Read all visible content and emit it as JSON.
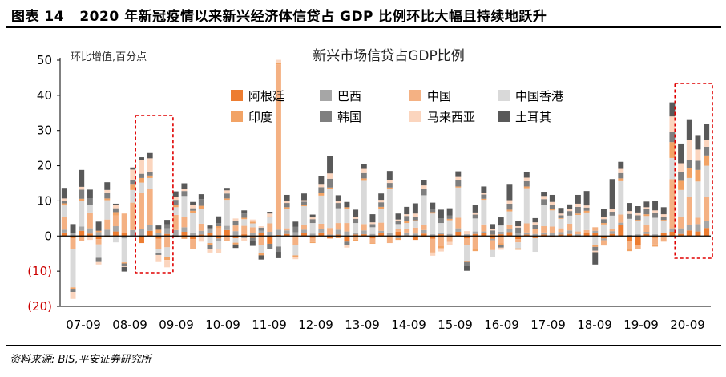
{
  "figure": {
    "label": "图表 14",
    "title": "2020 年新冠疫情以来新兴经济体信贷占 GDP 比例环比大幅且持续地跃升",
    "source": "资料来源: BIS,平安证券研究所"
  },
  "chart_data": {
    "type": "bar",
    "stacked": true,
    "title": "新兴市场信贷占GDP比例",
    "ylabel": "环比增值,百分点",
    "ylim": [
      -20,
      50
    ],
    "yticks": [
      50,
      40,
      30,
      20,
      10,
      0,
      -10,
      -20
    ],
    "ytick_labels": [
      "50",
      "40",
      "30",
      "20",
      "10",
      "0",
      "(10)",
      "(20)"
    ],
    "negative_tick_color": "#cc0000",
    "xtick_labels": [
      "07-09",
      "08-09",
      "09-09",
      "10-09",
      "11-09",
      "12-09",
      "13-09",
      "14-09",
      "15-09",
      "16-09",
      "17-09",
      "18-09",
      "19-09",
      "20-09"
    ],
    "legend_position": "top-center",
    "grid": false,
    "series": [
      {
        "name": "阿根廷",
        "color": "#ed7d31",
        "values": [
          1,
          -0.6,
          1.5,
          0.7,
          -0.9,
          -0.4,
          1.3,
          0.9,
          0,
          -2,
          1.5,
          -0.8,
          0.6,
          -0.4,
          1.2,
          -0.9,
          0.4,
          0.9,
          -0.7,
          1.7,
          -0.6,
          0.5,
          -0.5,
          0.9,
          -2.2,
          0.3,
          0.6,
          -0.4,
          0.9,
          -0.5,
          1,
          -0.7,
          0.4,
          -1.6,
          0.4,
          0.5,
          -0.7,
          0.8,
          -0.3,
          1.2,
          0.2,
          -1.1,
          0.7,
          -0.8,
          0.5,
          -0.3,
          1.2,
          -0.7,
          0.6,
          0.8,
          -0.8,
          0.5,
          1.1,
          -0.9,
          0.4,
          -0.6,
          0.4,
          -0.4,
          0.4,
          0.6,
          -0.4,
          0.8,
          0.9,
          -0.7,
          0.6,
          3.2,
          -1.4,
          -2.6,
          0.6,
          -0.5,
          0.8,
          1.2,
          0.6,
          1.6,
          1.3,
          2.3
        ]
      },
      {
        "name": "巴西",
        "color": "#a6a6a6",
        "values": [
          0.8,
          0.9,
          1.2,
          1.5,
          1.1,
          1.8,
          1.5,
          -0.7,
          1.7,
          2.1,
          1.7,
          0.9,
          1.6,
          1.7,
          1.3,
          1,
          1.1,
          1.3,
          -0.7,
          1.2,
          1.4,
          -0.6,
          0.9,
          0.6,
          1.2,
          1.5,
          1,
          1.1,
          0.9,
          0.7,
          0.9,
          0.4,
          1.4,
          1.3,
          0.6,
          1.1,
          0.6,
          0.7,
          1,
          -0.6,
          0.8,
          0.7,
          1,
          0.5,
          0.4,
          0.6,
          1,
          0.5,
          0.7,
          0.5,
          -0.4,
          0.7,
          0.9,
          0.8,
          0.6,
          0.6,
          0.6,
          0.8,
          0.7,
          1,
          0.5,
          -0.4,
          0.6,
          -0.5,
          0.8,
          0.6,
          0.3,
          0.5,
          0.6,
          0.5,
          -0.4,
          1,
          1.6,
          1.6,
          2.1,
          1.9
        ]
      },
      {
        "name": "中国",
        "color": "#f4b183",
        "values": [
          3.6,
          -3,
          -1.4,
          4.5,
          -1.5,
          2.9,
          3,
          5.5,
          7.8,
          10.2,
          10.3,
          -3,
          -3.2,
          4.3,
          2.9,
          -2.8,
          2,
          -0.3,
          2.2,
          -1.4,
          1.6,
          2.4,
          1.6,
          -2.6,
          2.4,
          47,
          0.6,
          -2.1,
          1.3,
          -1.2,
          1.6,
          1.9,
          1.9,
          2.4,
          -1,
          1.8,
          -1.3,
          2.3,
          -1.7,
          0.9,
          1,
          1.7,
          1.5,
          -3.9,
          -2.9,
          -1.4,
          3,
          -1.8,
          -3.7,
          2,
          -2.8,
          -2.1,
          1.3,
          -0.9,
          2.6,
          1.2,
          1.8,
          1.9,
          1.1,
          1.9,
          0.8,
          0.9,
          1,
          -1.5,
          0.6,
          2.3,
          -2.3,
          -1.1,
          2,
          -1.9,
          -1.2,
          14,
          3.3,
          8,
          1.8,
          7
        ]
      },
      {
        "name": "中国香港",
        "color": "#d9d9d9",
        "values": [
          3.3,
          -11,
          7.3,
          2.1,
          -3.8,
          5.5,
          -1.8,
          -6.8,
          3.6,
          2.9,
          3,
          -1.1,
          -2.7,
          2.2,
          6,
          5.5,
          4.2,
          -1.7,
          -2.3,
          7.4,
          -1.3,
          1.9,
          1.1,
          -2.3,
          1.7,
          -3,
          5.4,
          -3,
          5.4,
          3,
          8,
          11,
          4.2,
          3.9,
          2.7,
          12.3,
          1.9,
          4,
          12.4,
          1.3,
          1.7,
          1.8,
          8.4,
          5.9,
          2.8,
          3.9,
          8.6,
          -4.6,
          3.7,
          7,
          -1.9,
          1.8,
          3.7,
          -1.7,
          10,
          -3.9,
          6,
          4.6,
          2.7,
          2.3,
          4.7,
          5,
          -2.6,
          3.3,
          3.8,
          9.5,
          4.6,
          3.8,
          2.5,
          4.7,
          3.4,
          6,
          7.6,
          5.3,
          10.3,
          8.8
        ]
      },
      {
        "name": "印度",
        "color": "#f2a365",
        "values": [
          0.6,
          -0.4,
          0.6,
          -0.2,
          0.4,
          0.5,
          1,
          -0.3,
          1.5,
          1.3,
          0.7,
          0.9,
          -0.9,
          0.6,
          -0.8,
          0.7,
          0.9,
          -0.5,
          0.6,
          0.4,
          -0.5,
          0.4,
          0.5,
          -0.6,
          0.3,
          0.5,
          0.6,
          -0.4,
          0.3,
          -0.3,
          0.8,
          0.5,
          -0.6,
          0.6,
          -0.4,
          0.7,
          -0.2,
          0.5,
          0.4,
          -0.5,
          0.6,
          0.3,
          -0.4,
          0.4,
          -0.6,
          0.4,
          0.3,
          -0.3,
          -0.6,
          0.3,
          0.4,
          -0.5,
          0.5,
          -0.4,
          0.5,
          0.3,
          -0.3,
          0.5,
          0.2,
          -0.3,
          0.4,
          0.5,
          -0.5,
          0.4,
          -0.2,
          0.8,
          -0.6,
          0.3,
          0.5,
          -0.6,
          0.4,
          4.5,
          2.6,
          2.8,
          3.3,
          2.9
        ]
      },
      {
        "name": "韩国",
        "color": "#7f7f7f",
        "values": [
          0.8,
          -0.9,
          2.6,
          1.9,
          -1.2,
          1.7,
          1.1,
          -0.6,
          1.3,
          1.2,
          1.1,
          -0.5,
          1.1,
          1.5,
          1.4,
          0.7,
          1.9,
          -1.2,
          0.9,
          1.4,
          1.3,
          1.2,
          -1,
          0.9,
          -1.4,
          -1.5,
          1.2,
          1.5,
          1,
          1.1,
          1.6,
          2.5,
          1.5,
          -0.9,
          1.2,
          1.5,
          0.9,
          1.3,
          1.3,
          0.8,
          1.4,
          1,
          1.8,
          1,
          1.3,
          0.9,
          1.9,
          -1,
          1.1,
          1.2,
          1.2,
          -0.7,
          1.7,
          1.6,
          1.5,
          1.1,
          1.7,
          1.1,
          0.8,
          1.3,
          1.9,
          0.9,
          -1.1,
          1.1,
          1.1,
          1.5,
          1.4,
          1.3,
          1.6,
          1.5,
          0.9,
          2.8,
          2.6,
          2.3,
          2.6,
          2.5
        ]
      },
      {
        "name": "马来西亚",
        "color": "#fbd5be",
        "values": [
          0.6,
          -2,
          0.8,
          -0.9,
          -0.7,
          0.7,
          0.9,
          -0.4,
          3,
          4,
          3.8,
          -2,
          -2.1,
          0.8,
          0.7,
          0.9,
          -1.6,
          -1,
          -1.1,
          0.9,
          0.7,
          -0.9,
          0.6,
          0.4,
          0.8,
          0.8,
          0.7,
          -0.7,
          0.4,
          0.5,
          0.7,
          1.5,
          0.6,
          -0.8,
          0.5,
          1.2,
          0.5,
          0.7,
          0.8,
          0.5,
          0.5,
          0.9,
          1,
          -0.9,
          -0.9,
          -0.8,
          0.8,
          0.9,
          0.6,
          0.5,
          0.5,
          -0.6,
          1,
          0.4,
          1,
          0.7,
          0.9,
          0.8,
          0.5,
          0.6,
          0.9,
          0.6,
          -0.4,
          0.7,
          0.7,
          1.2,
          0.8,
          0.8,
          0.4,
          0.6,
          0.7,
          4.5,
          2.4,
          5.6,
          3.2,
          2
        ]
      },
      {
        "name": "土耳其",
        "color": "#595959",
        "values": [
          3,
          2.5,
          4.8,
          2.5,
          2.6,
          2.2,
          0.4,
          -1.3,
          0.6,
          0.7,
          1.5,
          1.2,
          1.3,
          1.6,
          1.5,
          0.9,
          1.4,
          0.8,
          1.9,
          0.7,
          -1,
          0.9,
          -1.3,
          -1.2,
          0.5,
          -1.8,
          1.6,
          1.5,
          1.9,
          0.8,
          2.4,
          5,
          1.6,
          1.5,
          2.1,
          1.3,
          2.3,
          1.8,
          2.6,
          1.7,
          2.1,
          2.9,
          1.6,
          1.7,
          2.5,
          2.1,
          1.6,
          -1.5,
          2.1,
          1.8,
          1.3,
          2.3,
          4.4,
          1.4,
          1.5,
          1.2,
          1.2,
          2,
          1.6,
          1.3,
          2.5,
          4.1,
          -3.5,
          2.1,
          8.6,
          2,
          2.3,
          1.8,
          1.6,
          2.7,
          2,
          4,
          5.6,
          6,
          4.1,
          4.4
        ]
      }
    ],
    "highlight_boxes_over_periods": [
      "08-09 ~ 09-09",
      "19-09 ~ 20-09"
    ]
  }
}
